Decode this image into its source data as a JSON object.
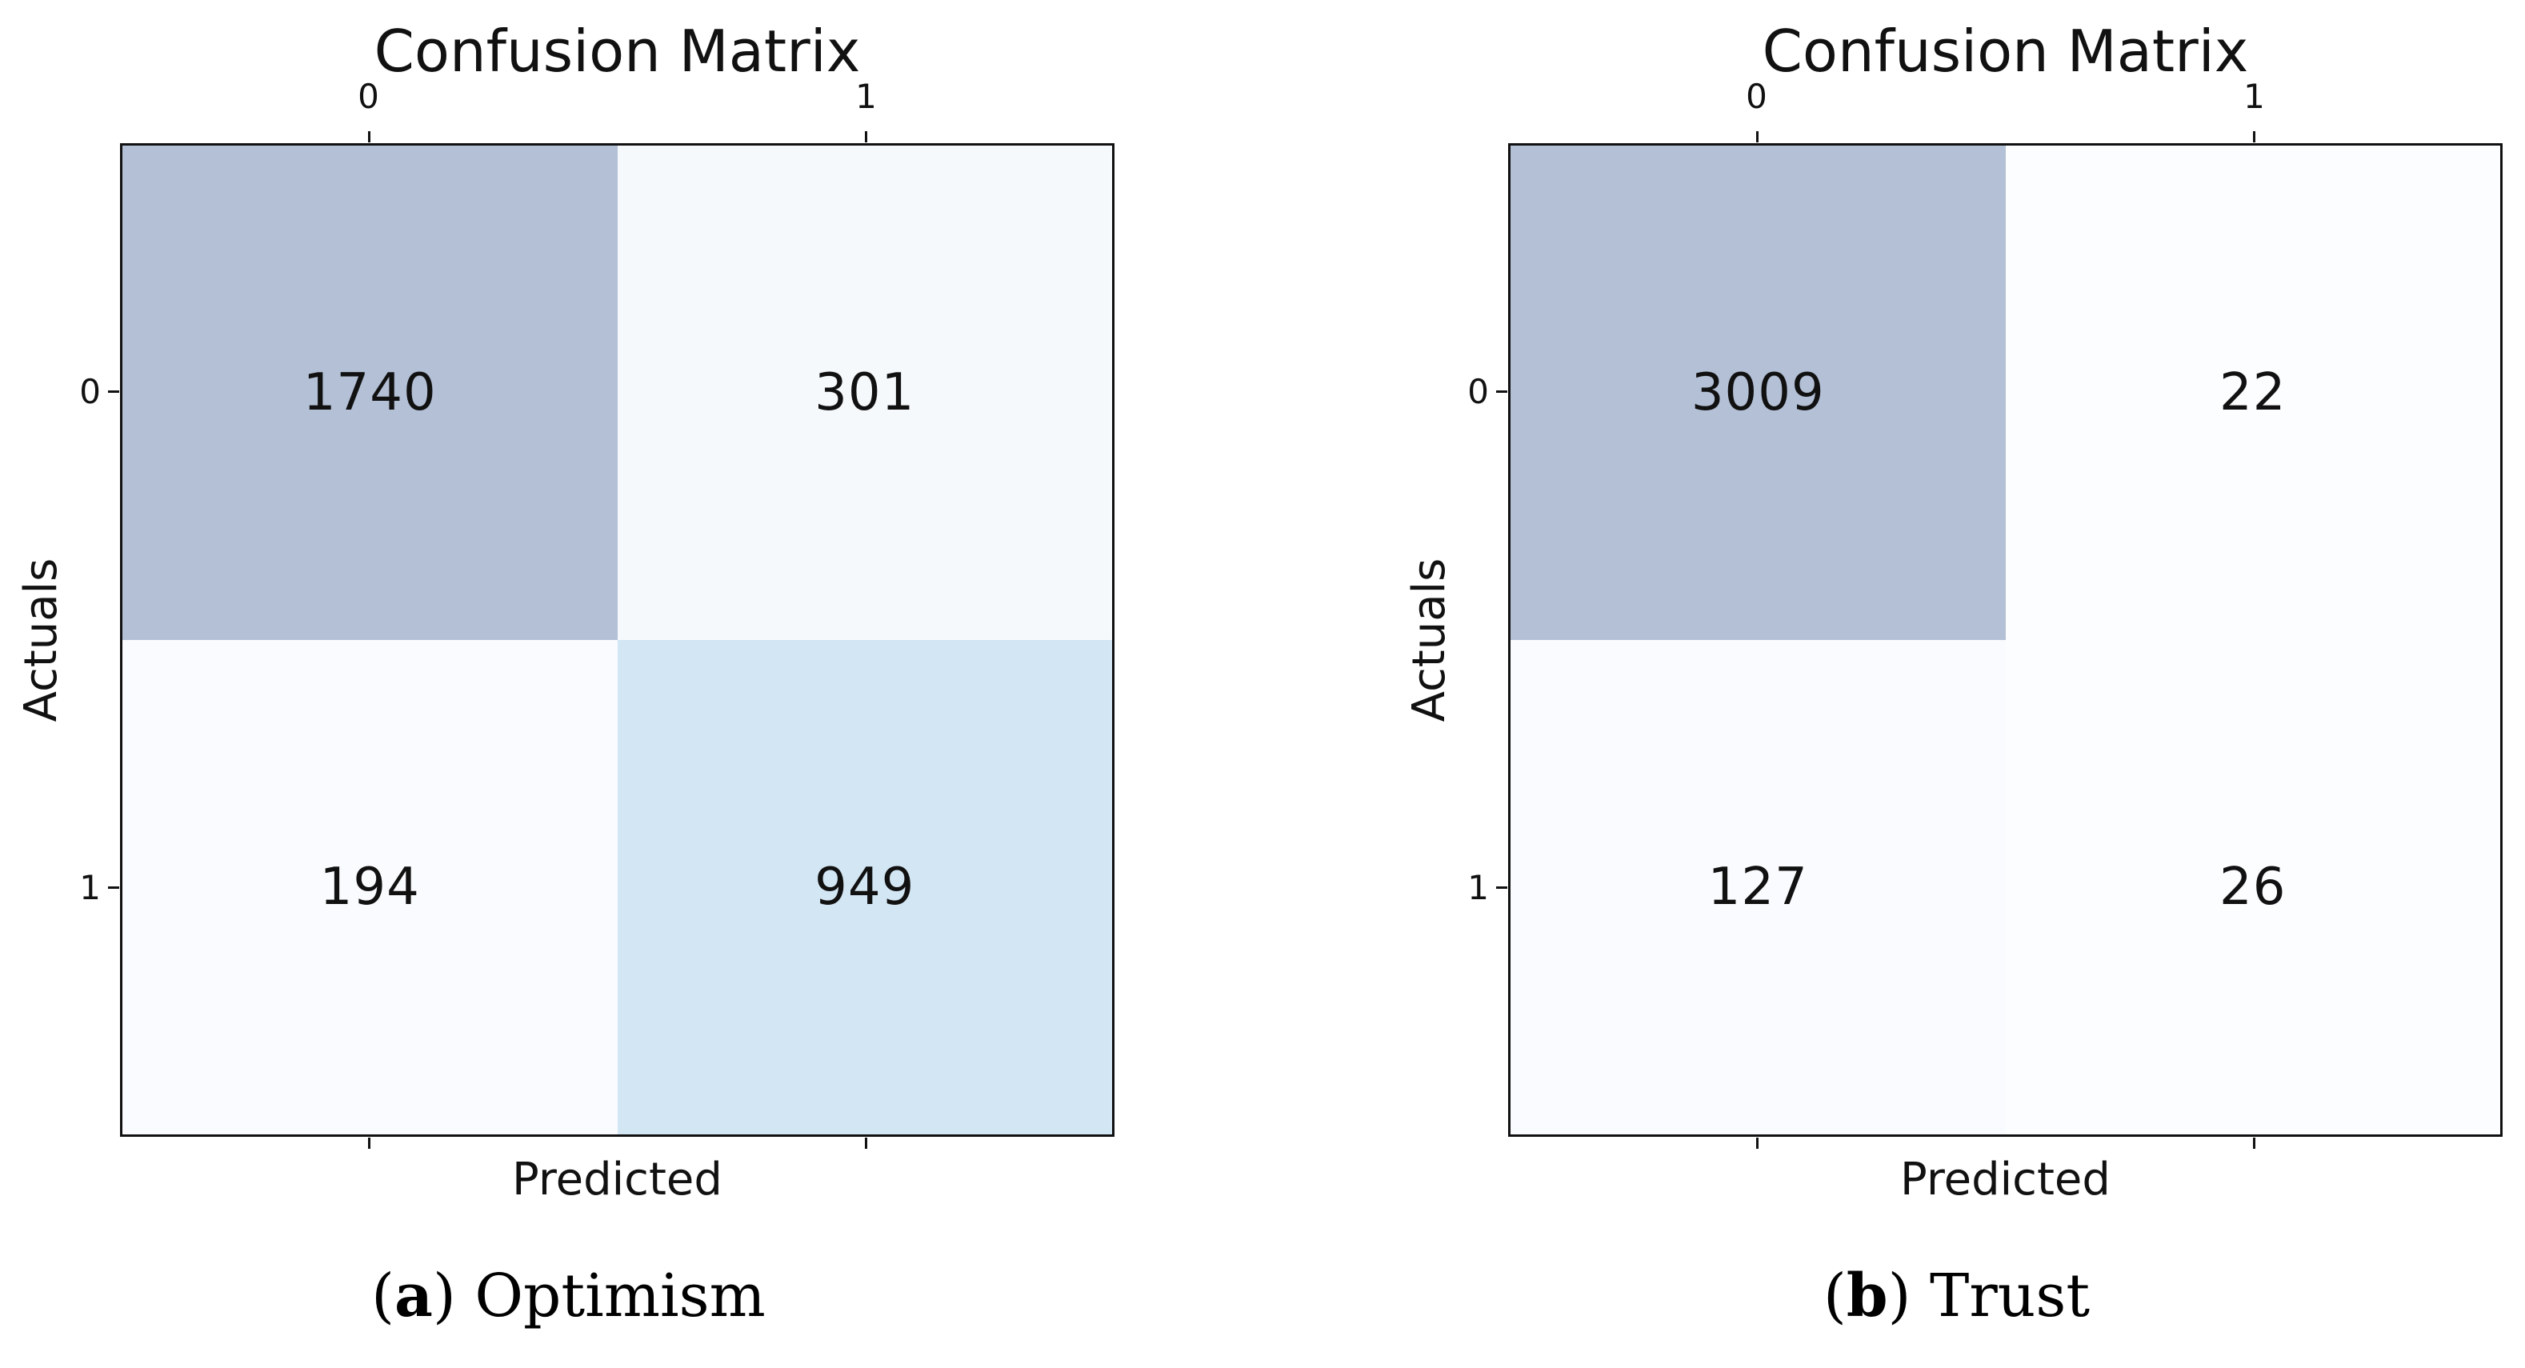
{
  "figure": {
    "background": "#ffffff",
    "frame_color": "#111111",
    "text_color": "#111111"
  },
  "panels": [
    {
      "title": "Confusion Matrix",
      "xlabel": "Predicted",
      "ylabel": "Actuals",
      "x_ticks": [
        "0",
        "1"
      ],
      "y_ticks": [
        "0",
        "1"
      ],
      "cells": [
        "1740",
        "301",
        "194",
        "949"
      ],
      "cell_colors": [
        "#b3c0d5",
        "#f5f9fc",
        "#f9fbfe",
        "#d3e6f3"
      ],
      "caption": {
        "open": "(",
        "letter": "a",
        "rest": ") Optimism"
      }
    },
    {
      "title": "Confusion Matrix",
      "xlabel": "Predicted",
      "ylabel": "Actuals",
      "x_ticks": [
        "0",
        "1"
      ],
      "y_ticks": [
        "0",
        "1"
      ],
      "cells": [
        "3009",
        "22",
        "127",
        "26"
      ],
      "cell_colors": [
        "#b3c0d5",
        "#fbfdfe",
        "#f9fbfe",
        "#fbfdfe"
      ],
      "caption": {
        "open": "(",
        "letter": "b",
        "rest": ") Trust"
      }
    }
  ],
  "chart_data": [
    {
      "type": "heatmap",
      "title": "Confusion Matrix",
      "xlabel": "Predicted",
      "ylabel": "Actuals",
      "x_tick_labels": [
        "0",
        "1"
      ],
      "y_tick_labels": [
        "0",
        "1"
      ],
      "matrix": [
        [
          1740,
          301
        ],
        [
          194,
          949
        ]
      ],
      "caption": "(a) Optimism",
      "colormap": "light Blues",
      "legend": "none",
      "grid": false
    },
    {
      "type": "heatmap",
      "title": "Confusion Matrix",
      "xlabel": "Predicted",
      "ylabel": "Actuals",
      "x_tick_labels": [
        "0",
        "1"
      ],
      "y_tick_labels": [
        "0",
        "1"
      ],
      "matrix": [
        [
          3009,
          22
        ],
        [
          127,
          26
        ]
      ],
      "caption": "(b) Trust",
      "colormap": "light Blues",
      "legend": "none",
      "grid": false
    }
  ]
}
